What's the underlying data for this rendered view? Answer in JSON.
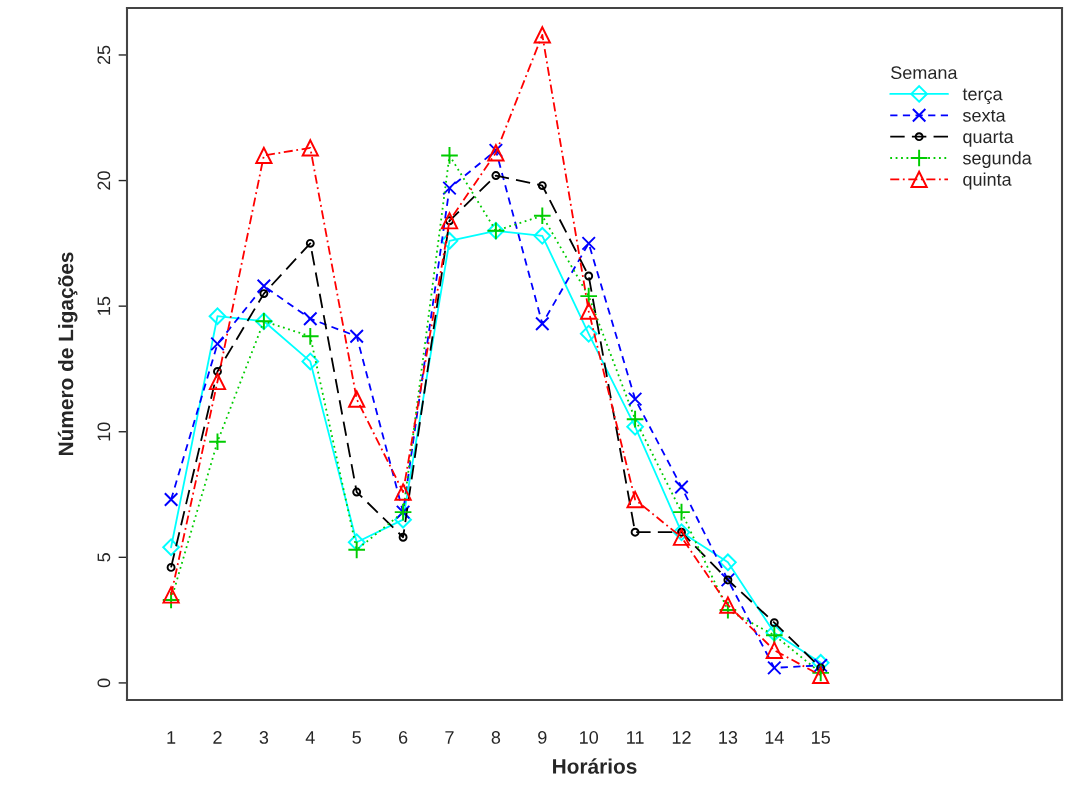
{
  "chart_data": {
    "type": "line",
    "xlabel": "Horários",
    "ylabel": "Número de Ligações",
    "legend_title": "Semana",
    "legend": "top right",
    "grid": false,
    "x": [
      1,
      2,
      3,
      4,
      5,
      6,
      7,
      8,
      9,
      10,
      11,
      12,
      13,
      14,
      15
    ],
    "xlim": [
      0.05,
      20.2
    ],
    "xticks": [
      1,
      2,
      3,
      4,
      5,
      6,
      7,
      8,
      9,
      10,
      11,
      12,
      13,
      14,
      15
    ],
    "ylim": [
      -0.68,
      26.87
    ],
    "yticks": [
      0,
      5,
      10,
      15,
      20,
      25
    ],
    "series": [
      {
        "name": "terça",
        "color": "#00ffff",
        "marker": "diamond",
        "line_style": "solid",
        "values": [
          5.4,
          14.6,
          14.4,
          12.8,
          5.6,
          6.5,
          17.6,
          18.0,
          17.8,
          13.9,
          10.2,
          6.0,
          4.8,
          2.0,
          0.8
        ]
      },
      {
        "name": "sexta",
        "color": "#0000ff",
        "marker": "cross",
        "line_style": "dashed",
        "values": [
          7.3,
          13.5,
          15.8,
          14.5,
          13.8,
          6.8,
          19.7,
          21.2,
          14.3,
          17.5,
          11.3,
          7.8,
          4.1,
          0.6,
          0.7
        ]
      },
      {
        "name": "quarta",
        "color": "#000000",
        "marker": "circle",
        "line_style": "longdash",
        "values": [
          4.6,
          12.4,
          15.5,
          17.5,
          7.6,
          5.8,
          18.4,
          20.2,
          19.8,
          16.2,
          6.0,
          6.0,
          4.1,
          2.4,
          0.6
        ]
      },
      {
        "name": "segunda",
        "color": "#00cc00",
        "marker": "plus",
        "line_style": "dotted",
        "values": [
          3.3,
          9.6,
          14.4,
          13.8,
          5.3,
          6.8,
          21.0,
          18.0,
          18.6,
          15.4,
          10.5,
          6.8,
          2.9,
          1.9,
          0.4
        ]
      },
      {
        "name": "quinta",
        "color": "#ff0000",
        "marker": "triangle",
        "line_style": "dashdot",
        "values": [
          3.5,
          12.0,
          21.0,
          21.3,
          11.3,
          7.6,
          18.4,
          21.1,
          25.8,
          14.8,
          7.3,
          5.8,
          3.1,
          1.3,
          0.3
        ]
      }
    ]
  }
}
